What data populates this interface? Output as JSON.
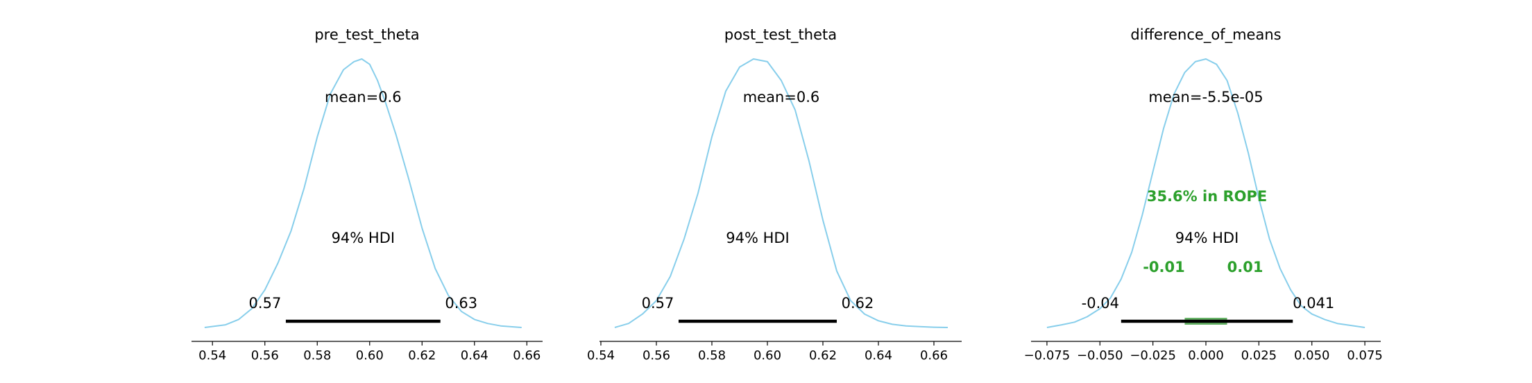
{
  "chart_data": [
    {
      "type": "density",
      "title": "pre_test_theta",
      "mean_label": "mean=0.6",
      "hdi_label": "94% HDI",
      "hdi": [
        0.568,
        0.627
      ],
      "hdi_text": [
        "0.57",
        "0.63"
      ],
      "xlim": [
        0.532,
        0.666
      ],
      "ticks": [
        0.54,
        0.56,
        0.58,
        0.6,
        0.62,
        0.64,
        0.66
      ],
      "tick_labels": [
        "0.54",
        "0.56",
        "0.58",
        "0.60",
        "0.62",
        "0.64",
        "0.66"
      ],
      "density_x": [
        0.537,
        0.545,
        0.55,
        0.555,
        0.56,
        0.565,
        0.57,
        0.575,
        0.58,
        0.585,
        0.59,
        0.594,
        0.597,
        0.6,
        0.603,
        0.606,
        0.61,
        0.615,
        0.62,
        0.625,
        0.63,
        0.635,
        0.64,
        0.645,
        0.65,
        0.658
      ],
      "density_y": [
        0.0,
        0.01,
        0.03,
        0.07,
        0.14,
        0.24,
        0.36,
        0.52,
        0.71,
        0.87,
        0.96,
        0.99,
        1.0,
        0.98,
        0.92,
        0.84,
        0.72,
        0.55,
        0.37,
        0.22,
        0.12,
        0.06,
        0.03,
        0.015,
        0.006,
        0.0
      ]
    },
    {
      "type": "density",
      "title": "post_test_theta",
      "mean_label": "mean=0.6",
      "hdi_label": "94% HDI",
      "hdi": [
        0.568,
        0.625
      ],
      "hdi_text": [
        "0.57",
        "0.62"
      ],
      "xlim": [
        0.5395,
        0.67
      ],
      "ticks": [
        0.54,
        0.56,
        0.58,
        0.6,
        0.62,
        0.64,
        0.66
      ],
      "tick_labels": [
        "0.54",
        "0.56",
        "0.58",
        "0.60",
        "0.62",
        "0.64",
        "0.66"
      ],
      "density_x": [
        0.545,
        0.55,
        0.555,
        0.56,
        0.565,
        0.57,
        0.575,
        0.58,
        0.585,
        0.59,
        0.595,
        0.6,
        0.605,
        0.61,
        0.615,
        0.62,
        0.625,
        0.63,
        0.635,
        0.64,
        0.645,
        0.65,
        0.655,
        0.66,
        0.665
      ],
      "density_y": [
        0.0,
        0.015,
        0.05,
        0.1,
        0.19,
        0.33,
        0.5,
        0.71,
        0.88,
        0.97,
        1.0,
        0.99,
        0.92,
        0.81,
        0.62,
        0.4,
        0.21,
        0.1,
        0.05,
        0.025,
        0.012,
        0.006,
        0.003,
        0.001,
        0.0
      ]
    },
    {
      "type": "density",
      "title": "difference_of_means",
      "mean_label": "mean=-5.5e-05",
      "hdi_label": "94% HDI",
      "hdi": [
        -0.04,
        0.041
      ],
      "hdi_text": [
        "-0.04",
        "0.041"
      ],
      "rope": [
        -0.01,
        0.01
      ],
      "rope_label": "35.6% in ROPE",
      "rope_text": [
        "-0.01",
        "0.01"
      ],
      "xlim": [
        -0.0825,
        0.0825
      ],
      "ticks": [
        -0.075,
        -0.05,
        -0.025,
        0.0,
        0.025,
        0.05,
        0.075
      ],
      "tick_labels": [
        "−0.075",
        "−0.050",
        "−0.025",
        "0.000",
        "0.025",
        "0.050",
        "0.075"
      ],
      "density_x": [
        -0.075,
        -0.068,
        -0.062,
        -0.056,
        -0.05,
        -0.045,
        -0.04,
        -0.035,
        -0.03,
        -0.025,
        -0.02,
        -0.015,
        -0.01,
        -0.005,
        0.0,
        0.005,
        0.01,
        0.015,
        0.02,
        0.025,
        0.03,
        0.035,
        0.04,
        0.045,
        0.05,
        0.056,
        0.062,
        0.068,
        0.075
      ],
      "density_y": [
        0.0,
        0.01,
        0.02,
        0.04,
        0.07,
        0.11,
        0.18,
        0.28,
        0.42,
        0.58,
        0.74,
        0.87,
        0.95,
        0.99,
        1.0,
        0.98,
        0.92,
        0.8,
        0.65,
        0.48,
        0.33,
        0.22,
        0.14,
        0.08,
        0.05,
        0.03,
        0.015,
        0.008,
        0.0
      ]
    }
  ],
  "colors": {
    "density_line": "#87ceeb",
    "hdi_bar": "#000000",
    "rope": "#2ca02c",
    "rope_fill": "#66b266",
    "axis": "#000000"
  }
}
